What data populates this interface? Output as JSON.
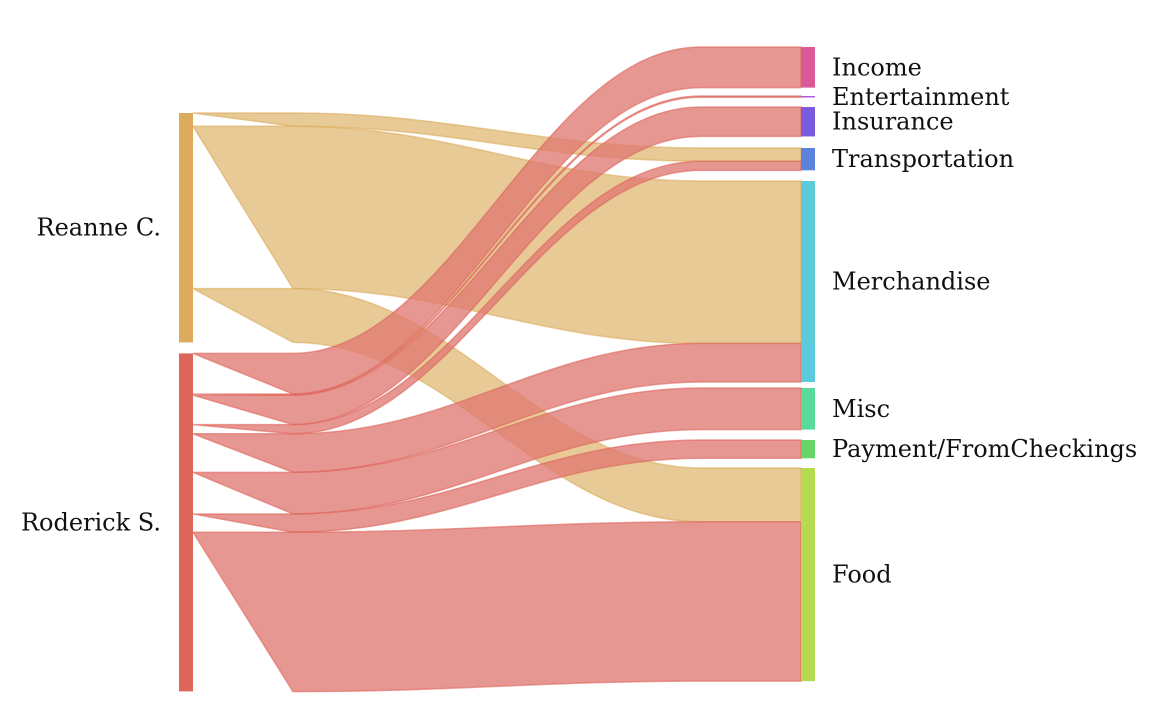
{
  "sankey": {
    "sources": [
      {
        "label": "Reanne C.",
        "color": "#dcab5c",
        "link_color": "#e0bb79"
      },
      {
        "label": "Roderick S.",
        "color": "#dd665b",
        "link_color": "#e07a72"
      }
    ],
    "targets": [
      {
        "label": "Income",
        "color": "#db5899"
      },
      {
        "label": "Entertainment",
        "color": "#b05bdb"
      },
      {
        "label": "Insurance",
        "color": "#7a5bdb"
      },
      {
        "label": "Transportation",
        "color": "#5b83db"
      },
      {
        "label": "Merchandise",
        "color": "#5bcadb"
      },
      {
        "label": "Misc",
        "color": "#5bdb9b"
      },
      {
        "label": "Payment/FromCheckings",
        "color": "#66d466"
      },
      {
        "label": "Food",
        "color": "#b5d94f"
      }
    ],
    "flows": [
      {
        "source": "Reanne C.",
        "target": "Transportation",
        "value": 13
      },
      {
        "source": "Reanne C.",
        "target": "Merchandise",
        "value": 160
      },
      {
        "source": "Reanne C.",
        "target": "Food",
        "value": 53
      },
      {
        "source": "Roderick S.",
        "target": "Income",
        "value": 40
      },
      {
        "source": "Roderick S.",
        "target": "Entertainment",
        "value": 1
      },
      {
        "source": "Roderick S.",
        "target": "Insurance",
        "value": 29
      },
      {
        "source": "Roderick S.",
        "target": "Transportation",
        "value": 9
      },
      {
        "source": "Roderick S.",
        "target": "Merchandise",
        "value": 38
      },
      {
        "source": "Roderick S.",
        "target": "Misc",
        "value": 41
      },
      {
        "source": "Roderick S.",
        "target": "Payment/FromCheckings",
        "value": 18
      },
      {
        "source": "Roderick S.",
        "target": "Food",
        "value": 157
      }
    ]
  }
}
